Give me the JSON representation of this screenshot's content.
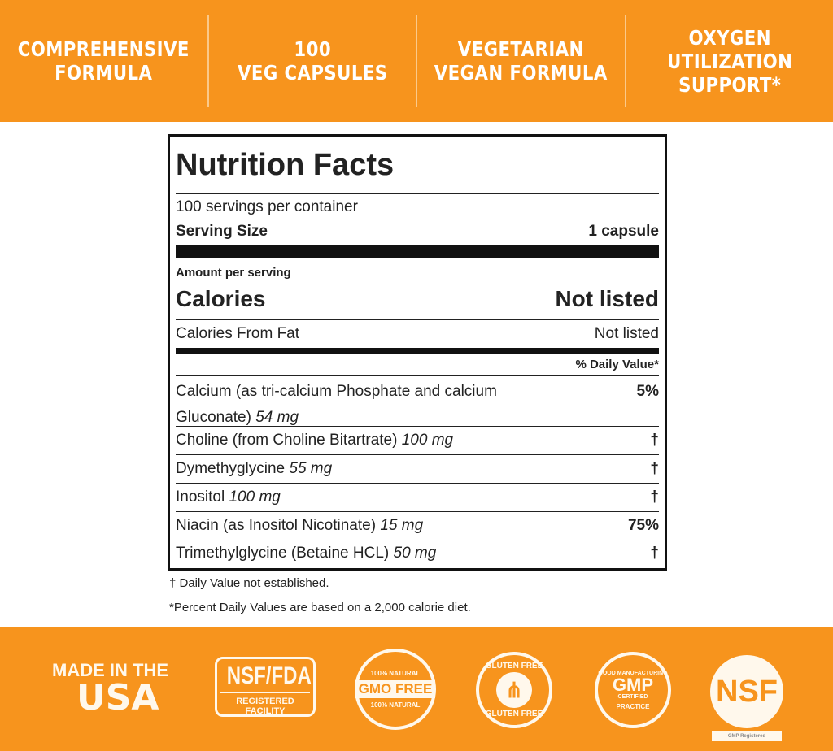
{
  "top_features": [
    "COMPREHENSIVE\nFORMULA",
    "100\nVEG CAPSULES",
    "VEGETARIAN\nVEGAN FORMULA",
    "OXYGEN\nUTILIZATION\nSUPPORT*"
  ],
  "label": {
    "title": "Nutrition Facts",
    "servings": "100 servings per container",
    "serving_size_label": "Serving Size",
    "serving_size_value": "1 capsule",
    "amount_per_serving": "Amount per serving",
    "calories_label": "Calories",
    "calories_value": "Not listed",
    "cal_fat_label": "Calories From Fat",
    "cal_fat_value": "Not listed",
    "dv_header": "% Daily Value*",
    "nutrients": [
      {
        "name": "Calcium (as tri-calcium Phosphate and calcium",
        "name2": "Gluconate)",
        "amount": "54 mg",
        "dv": "5%"
      },
      {
        "name": "Choline (from Choline Bitartrate)",
        "amount": "100 mg",
        "dv": "†"
      },
      {
        "name": "Dymethyglycine",
        "amount": "55 mg",
        "dv": "†"
      },
      {
        "name": "Inositol",
        "amount": "100 mg",
        "dv": "†"
      },
      {
        "name": "Niacin (as Inositol Nicotinate)",
        "amount": "15 mg",
        "dv": "75%"
      },
      {
        "name": "Trimethylglycine (Betaine HCL)",
        "amount": "50 mg",
        "dv": "†"
      }
    ]
  },
  "footnotes": [
    "† Daily Value not established.",
    "*Percent Daily Values are based on a 2,000 calorie diet."
  ],
  "badges": {
    "usa": [
      "MADE IN THE",
      "USA"
    ],
    "nsf_fda": [
      "NSF/FDA",
      "REGISTERED FACILITY"
    ],
    "gmo": [
      "100% NATURAL",
      "GMO FREE",
      "100% NATURAL"
    ],
    "gluten": [
      "GLUTEN FREE",
      "GLUTEN FREE"
    ],
    "gmp": [
      "GOOD MANUFACTURING",
      "GMP",
      "CERTIFIED",
      "PRACTICE"
    ],
    "nsf": [
      "NSF",
      "GMP Registered"
    ]
  },
  "colors": {
    "brand": "#f7941d"
  }
}
